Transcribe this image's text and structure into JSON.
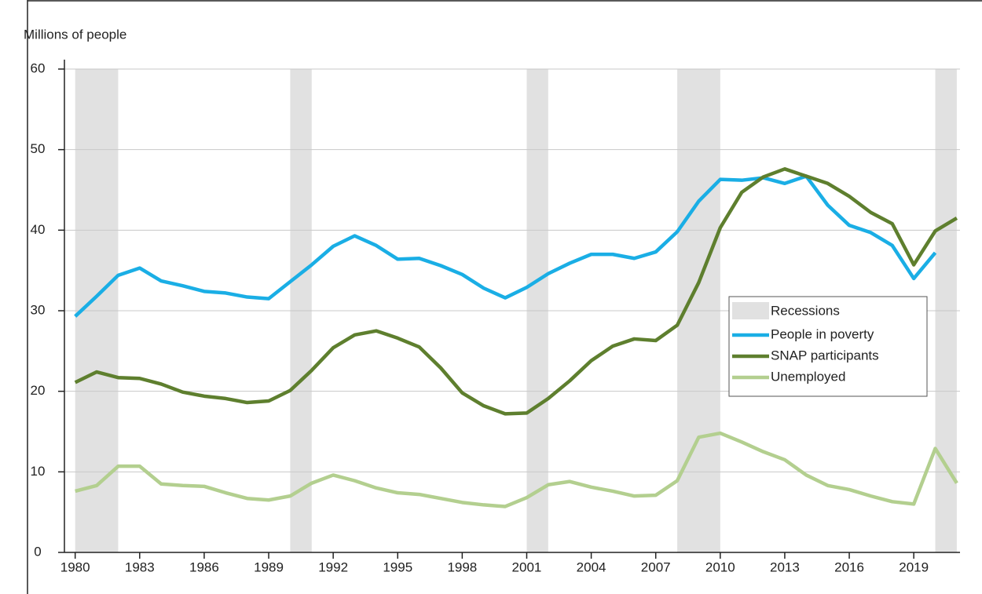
{
  "chart_data": {
    "type": "line",
    "y_label": "Millions of people",
    "x": [
      1980,
      1981,
      1982,
      1983,
      1984,
      1985,
      1986,
      1987,
      1988,
      1989,
      1990,
      1991,
      1992,
      1993,
      1994,
      1995,
      1996,
      1997,
      1998,
      1999,
      2000,
      2001,
      2002,
      2003,
      2004,
      2005,
      2006,
      2007,
      2008,
      2009,
      2010,
      2011,
      2012,
      2013,
      2014,
      2015,
      2016,
      2017,
      2018,
      2019,
      2020,
      2021
    ],
    "series": [
      {
        "name": "People in poverty",
        "color": "#1aaee5",
        "values": [
          29.3,
          31.8,
          34.4,
          35.3,
          33.7,
          33.1,
          32.4,
          32.2,
          31.7,
          31.5,
          33.6,
          35.7,
          38.0,
          39.3,
          38.1,
          36.4,
          36.5,
          35.6,
          34.5,
          32.8,
          31.6,
          32.9,
          34.6,
          35.9,
          37.0,
          37.0,
          36.5,
          37.3,
          39.8,
          43.6,
          46.3,
          46.2,
          46.5,
          45.8,
          46.7,
          43.1,
          40.6,
          39.7,
          38.1,
          34.0,
          37.2,
          null
        ]
      },
      {
        "name": "SNAP participants",
        "color": "#5e7f2e",
        "values": [
          21.1,
          22.4,
          21.7,
          21.6,
          20.9,
          19.9,
          19.4,
          19.1,
          18.6,
          18.8,
          20.1,
          22.6,
          25.4,
          27.0,
          27.5,
          26.6,
          25.5,
          22.9,
          19.8,
          18.2,
          17.2,
          17.3,
          19.1,
          21.3,
          23.8,
          25.6,
          26.5,
          26.3,
          28.2,
          33.5,
          40.3,
          44.7,
          46.6,
          47.6,
          46.7,
          45.8,
          44.2,
          42.2,
          40.8,
          35.7,
          39.9,
          41.5
        ]
      },
      {
        "name": "Unemployed",
        "color": "#b3cf8f",
        "values": [
          7.6,
          8.3,
          10.7,
          10.7,
          8.5,
          8.3,
          8.2,
          7.4,
          6.7,
          6.5,
          7.0,
          8.6,
          9.6,
          8.9,
          8.0,
          7.4,
          7.2,
          6.7,
          6.2,
          5.9,
          5.7,
          6.8,
          8.4,
          8.8,
          8.1,
          7.6,
          7.0,
          7.1,
          8.9,
          14.3,
          14.8,
          13.7,
          12.5,
          11.5,
          9.6,
          8.3,
          7.8,
          7.0,
          6.3,
          6.0,
          12.9,
          8.6
        ]
      }
    ],
    "recessions": {
      "name": "Recessions",
      "color": "#e1e1e1",
      "ranges": [
        [
          1980,
          1982
        ],
        [
          1990,
          1991
        ],
        [
          2001,
          2002
        ],
        [
          2008,
          2010
        ],
        [
          2020,
          2021
        ]
      ]
    },
    "xlim": [
      1979.5,
      2021.15
    ],
    "xticks": [
      1980,
      1983,
      1986,
      1989,
      1992,
      1995,
      1998,
      2001,
      2004,
      2007,
      2010,
      2013,
      2016,
      2019
    ],
    "ylim": [
      0,
      60
    ],
    "yticks": [
      0,
      10,
      20,
      30,
      40,
      50,
      60
    ],
    "grid": true
  }
}
